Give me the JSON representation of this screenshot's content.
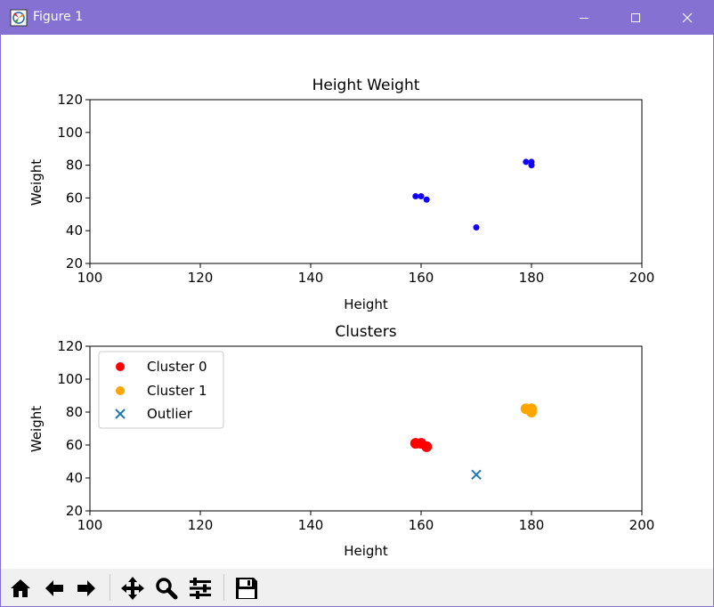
{
  "window": {
    "title": "Figure 1"
  },
  "colors": {
    "titlebar": "#8471d1",
    "point": "#1200ff",
    "cluster0": "#ff0000",
    "cluster1": "#ffa500",
    "outlier": "#1f77b4"
  },
  "icons": {
    "app": "matplotlib-figure-icon",
    "minimize": "minimize-icon",
    "maximize": "maximize-icon",
    "close": "close-icon"
  },
  "toolbar": {
    "buttons": [
      "home-icon",
      "back-arrow-icon",
      "forward-arrow-icon",
      "pan-icon",
      "zoom-icon",
      "configure-subplots-icon",
      "save-icon"
    ]
  },
  "chart_data": [
    {
      "type": "scatter",
      "title": "Height Weight",
      "xlabel": "Height",
      "ylabel": "Weight",
      "xlim": [
        100,
        200
      ],
      "ylim": [
        20,
        120
      ],
      "xticks": [
        100,
        120,
        140,
        160,
        180,
        200
      ],
      "yticks": [
        20,
        40,
        60,
        80,
        100,
        120
      ],
      "grid": false,
      "series": [
        {
          "color": "#1200ff",
          "marker": "dot",
          "x": [
            159,
            160,
            161,
            170,
            179,
            180,
            180
          ],
          "y": [
            61,
            61,
            59,
            42,
            82,
            82,
            80
          ]
        }
      ]
    },
    {
      "type": "scatter",
      "title": "Clusters",
      "xlabel": "Height",
      "ylabel": "Weight",
      "xlim": [
        100,
        200
      ],
      "ylim": [
        20,
        120
      ],
      "xticks": [
        100,
        120,
        140,
        160,
        180,
        200
      ],
      "yticks": [
        20,
        40,
        60,
        80,
        100,
        120
      ],
      "grid": false,
      "legend_position": "upper-left",
      "series": [
        {
          "name": "Cluster 0",
          "color": "#ff0000",
          "marker": "dot",
          "x": [
            159,
            160,
            161
          ],
          "y": [
            61,
            61,
            59
          ]
        },
        {
          "name": "Cluster 1",
          "color": "#ffa500",
          "marker": "dot",
          "x": [
            179,
            180,
            180
          ],
          "y": [
            82,
            82,
            80
          ]
        },
        {
          "name": "Outlier",
          "color": "#1f77b4",
          "marker": "x",
          "x": [
            170
          ],
          "y": [
            42
          ]
        }
      ]
    }
  ]
}
